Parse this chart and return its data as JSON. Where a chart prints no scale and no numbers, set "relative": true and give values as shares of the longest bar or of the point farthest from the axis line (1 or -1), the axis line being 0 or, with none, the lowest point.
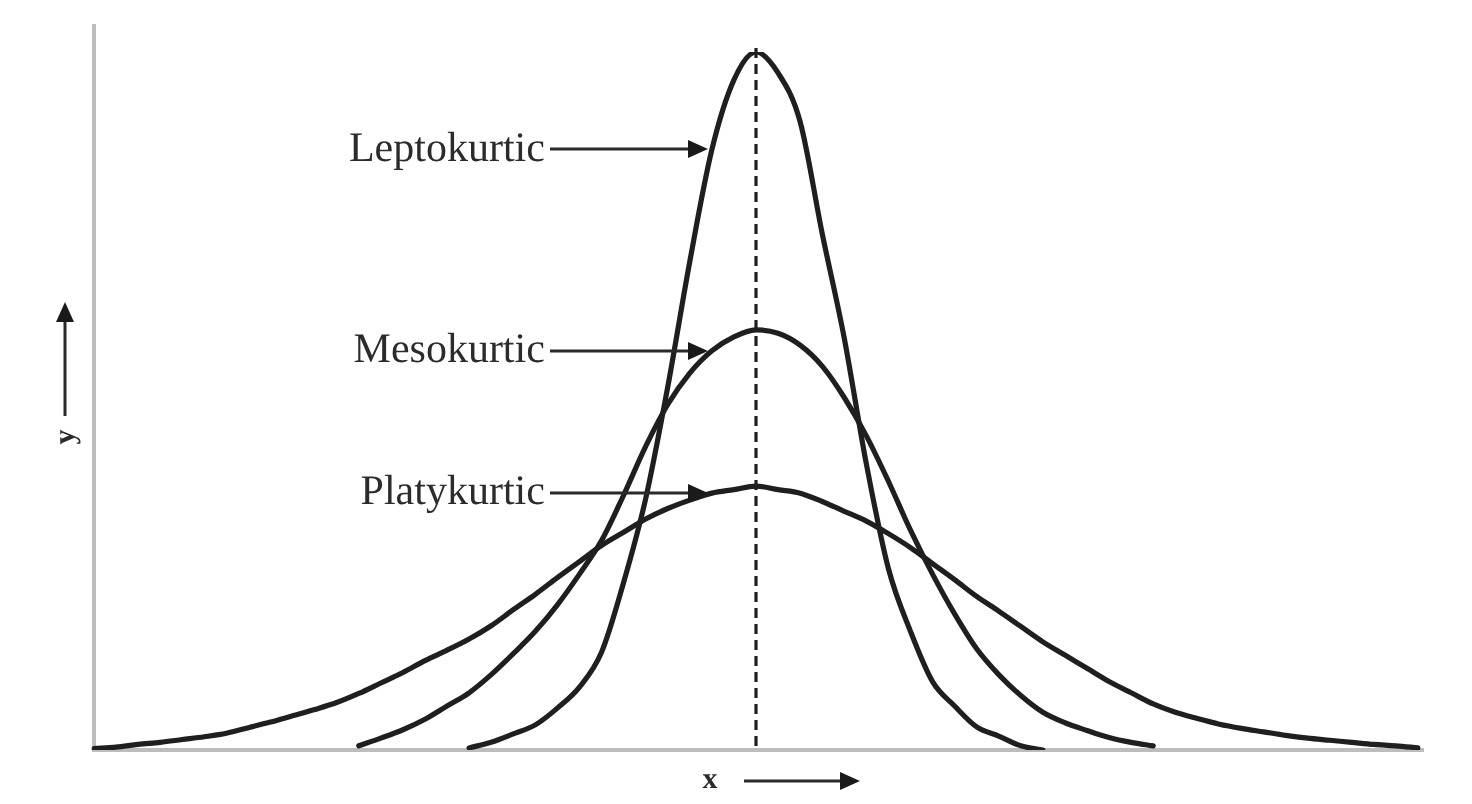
{
  "chart_data": {
    "type": "line",
    "relative": true,
    "xlabel": "x",
    "ylabel": "y",
    "tick_labels": false,
    "legend": "top left",
    "categories": [
      null,
      null,
      null,
      null,
      null,
      null,
      null,
      null,
      null,
      null,
      null,
      null,
      null,
      null,
      null,
      null,
      null,
      null,
      null,
      null,
      null,
      null,
      null,
      null,
      null,
      null,
      null,
      null,
      null,
      null,
      null,
      null,
      null,
      null,
      null,
      null,
      null,
      null,
      null,
      null,
      null,
      null,
      null,
      null,
      null,
      null,
      null,
      null,
      null,
      null,
      null,
      null,
      null,
      null,
      null,
      null,
      null,
      null,
      null,
      null,
      null
    ],
    "series": [
      {
        "name": "Leptokurtic",
        "color": "#1f1f1f",
        "values": [
          null,
          null,
          null,
          null,
          null,
          null,
          null,
          null,
          null,
          null,
          null,
          null,
          null,
          null,
          null,
          null,
          null,
          0.003,
          0.011,
          0.023,
          0.036,
          0.06,
          0.09,
          0.14,
          0.24,
          0.36,
          0.52,
          0.7,
          0.86,
          0.96,
          1,
          0.97,
          0.9,
          0.74,
          0.59,
          0.41,
          0.26,
          0.17,
          0.098,
          0.063,
          0.033,
          0.02,
          0.006,
          0,
          null,
          null,
          null,
          null,
          null,
          null,
          null,
          null,
          null,
          null,
          null,
          null,
          null,
          null,
          null,
          null,
          null
        ]
      },
      {
        "name": "Mesokurtic",
        "color": "#1f1f1f",
        "values": [
          null,
          null,
          null,
          null,
          null,
          null,
          null,
          null,
          null,
          null,
          null,
          null,
          0.006,
          0.017,
          0.029,
          0.044,
          0.063,
          0.082,
          0.108,
          0.138,
          0.17,
          0.208,
          0.252,
          0.3,
          0.365,
          0.435,
          0.495,
          0.54,
          0.572,
          0.592,
          0.602,
          0.597,
          0.58,
          0.55,
          0.505,
          0.45,
          0.385,
          0.315,
          0.252,
          0.195,
          0.145,
          0.108,
          0.078,
          0.054,
          0.039,
          0.028,
          0.018,
          0.011,
          0.006,
          null,
          null,
          null,
          null,
          null,
          null,
          null,
          null,
          null,
          null,
          null,
          null
        ]
      },
      {
        "name": "Platykurtic",
        "color": "#1f1f1f",
        "values": [
          0.002,
          0.004,
          0.008,
          0.011,
          0.015,
          0.019,
          0.024,
          0.032,
          0.04,
          0.049,
          0.058,
          0.068,
          0.081,
          0.096,
          0.111,
          0.128,
          0.143,
          0.159,
          0.178,
          0.201,
          0.223,
          0.247,
          0.27,
          0.293,
          0.312,
          0.331,
          0.346,
          0.358,
          0.368,
          0.373,
          0.378,
          0.373,
          0.368,
          0.356,
          0.342,
          0.328,
          0.31,
          0.29,
          0.267,
          0.244,
          0.22,
          0.199,
          0.177,
          0.155,
          0.136,
          0.117,
          0.098,
          0.082,
          0.066,
          0.054,
          0.045,
          0.037,
          0.031,
          0.026,
          0.021,
          0.017,
          0.014,
          0.011,
          0.008,
          0.006,
          0.003
        ]
      }
    ]
  }
}
